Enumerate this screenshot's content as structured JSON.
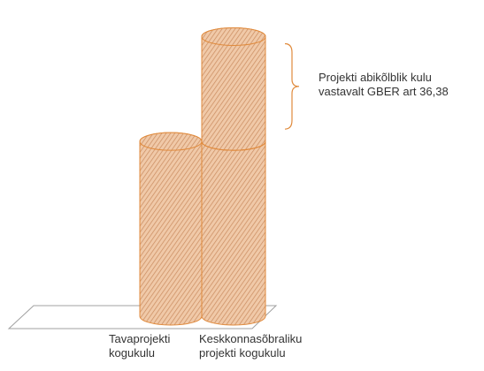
{
  "chart_data": {
    "type": "bar",
    "style": "3d-cylinder",
    "categories": [
      "Tavaprojekti kogukulu",
      "Keskkonnasõbraliku projekti kogukulu"
    ],
    "category_lines": [
      [
        "Tavaprojekti",
        "kogukulu"
      ],
      [
        "Keskkonnasõbraliku",
        "projekti kogukulu"
      ]
    ],
    "values": [
      100,
      100
    ],
    "extra_segment": {
      "category_index": 1,
      "value": 60
    },
    "title": "",
    "xlabel": "",
    "ylabel": "",
    "ylim": [
      0,
      170
    ],
    "grid": false,
    "legend": "none",
    "annotation": {
      "lines": [
        "Projekti abikõlblik kulu",
        "vastavalt GBER art 36,38"
      ],
      "target": "extra_segment"
    },
    "colors": {
      "fill": "#f0c9a8",
      "hatch": "#c98a5e",
      "outline": "#e08a3c",
      "floor": "#a0a0a0"
    }
  }
}
